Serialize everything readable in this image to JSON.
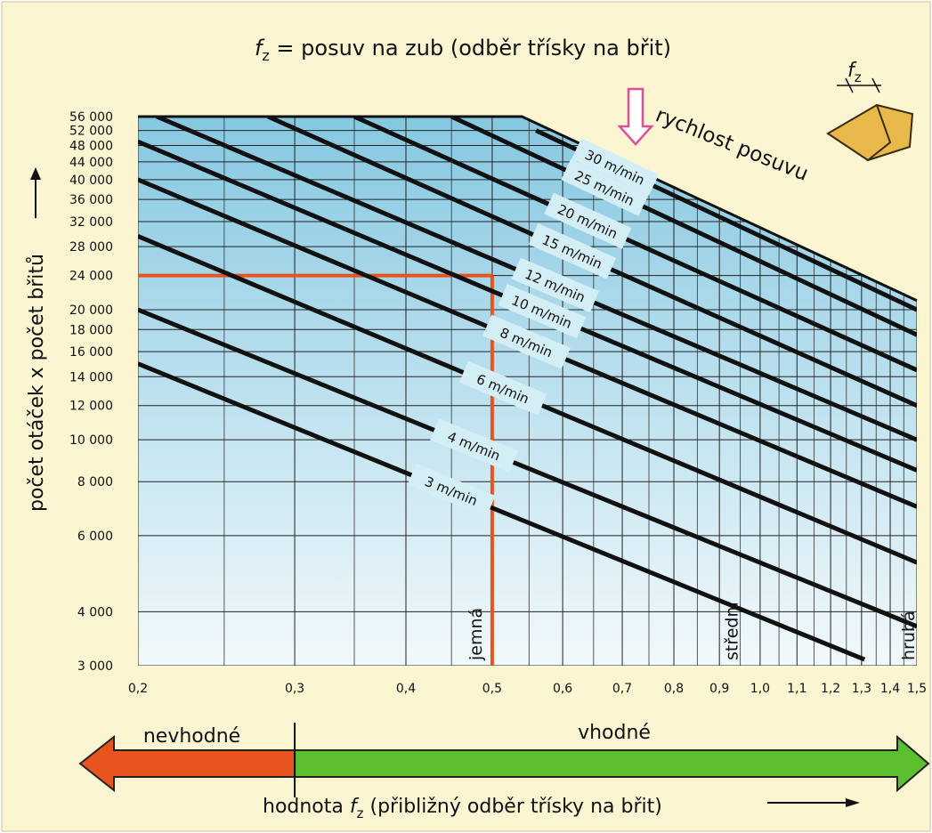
{
  "chart_data": {
    "type": "line",
    "title": {
      "symbol": "f",
      "subscript": "z",
      "text": " = posuv na zub (odběr třísky na břit)"
    },
    "y_label": "počet otáček x počet břitů",
    "x_label": {
      "text": "hodnota ",
      "symbol": "f",
      "subscript": "z",
      "rest": " (přibližný odběr třísky na břit)"
    },
    "feed_label": "rychlost posuvu",
    "icon_label": {
      "symbol": "f",
      "subscript": "z"
    },
    "xscale": "log",
    "yscale": "log",
    "grid": true,
    "xlim": [
      0.2,
      1.5
    ],
    "ylim": [
      3000,
      56000
    ],
    "xticks": [
      {
        "value": 0.2,
        "label": "0,2"
      },
      {
        "value": 0.3,
        "label": "0,3"
      },
      {
        "value": 0.4,
        "label": "0,4"
      },
      {
        "value": 0.5,
        "label": "0,5"
      },
      {
        "value": 0.6,
        "label": "0,6"
      },
      {
        "value": 0.7,
        "label": "0,7"
      },
      {
        "value": 0.8,
        "label": "0,8"
      },
      {
        "value": 0.9,
        "label": "0,9"
      },
      {
        "value": 1.0,
        "label": "1,0"
      },
      {
        "value": 1.1,
        "label": "1,1"
      },
      {
        "value": 1.2,
        "label": "1,2"
      },
      {
        "value": 1.3,
        "label": "1,3"
      },
      {
        "value": 1.4,
        "label": "1,4"
      },
      {
        "value": 1.5,
        "label": "1,5"
      }
    ],
    "xgrid_minor": [
      0.25,
      0.35,
      0.45,
      0.55,
      0.65,
      0.75,
      0.85,
      0.95,
      1.05,
      1.15,
      1.25,
      1.35,
      1.45
    ],
    "yticks": [
      {
        "value": 3000,
        "label": "3 000"
      },
      {
        "value": 4000,
        "label": "4 000"
      },
      {
        "value": 6000,
        "label": "6 000"
      },
      {
        "value": 8000,
        "label": "8 000"
      },
      {
        "value": 10000,
        "label": "10 000"
      },
      {
        "value": 12000,
        "label": "12 000"
      },
      {
        "value": 14000,
        "label": "14 000"
      },
      {
        "value": 16000,
        "label": "16 000"
      },
      {
        "value": 18000,
        "label": "18 000"
      },
      {
        "value": 20000,
        "label": "20 000"
      },
      {
        "value": 24000,
        "label": "24 000"
      },
      {
        "value": 28000,
        "label": "28 000"
      },
      {
        "value": 32000,
        "label": "32 000"
      },
      {
        "value": 36000,
        "label": "36 000"
      },
      {
        "value": 40000,
        "label": "40 000"
      },
      {
        "value": 44000,
        "label": "44 000"
      },
      {
        "value": 48000,
        "label": "48 000"
      },
      {
        "value": 52000,
        "label": "52 000"
      },
      {
        "value": 56000,
        "label": "56 000"
      }
    ],
    "top_edge": {
      "x": [
        0.2,
        0.54,
        1.5
      ],
      "values": [
        56000,
        56000,
        21000
      ]
    },
    "series": [
      {
        "name": "3 m/min",
        "color": "#111111",
        "x": [
          0.2,
          1.31
        ],
        "values": [
          15000,
          3100
        ]
      },
      {
        "name": "4 m/min",
        "color": "#111111",
        "x": [
          0.2,
          1.5
        ],
        "values": [
          20000,
          3700
        ]
      },
      {
        "name": "6 m/min",
        "color": "#111111",
        "x": [
          0.2,
          1.5
        ],
        "values": [
          29600,
          5200
        ]
      },
      {
        "name": "8 m/min",
        "color": "#111111",
        "x": [
          0.2,
          1.5
        ],
        "values": [
          40000,
          7000
        ]
      },
      {
        "name": "10 m/min",
        "color": "#111111",
        "x": [
          0.2,
          1.5
        ],
        "values": [
          49000,
          8500
        ]
      },
      {
        "name": "12 m/min",
        "color": "#111111",
        "x": [
          0.21,
          1.5
        ],
        "values": [
          56000,
          10000
        ]
      },
      {
        "name": "15 m/min",
        "color": "#111111",
        "x": [
          0.28,
          1.5
        ],
        "values": [
          56000,
          12000
        ]
      },
      {
        "name": "20 m/min",
        "color": "#111111",
        "x": [
          0.35,
          1.5
        ],
        "values": [
          56000,
          14500
        ]
      },
      {
        "name": "25 m/min",
        "color": "#111111",
        "x": [
          0.45,
          1.5
        ],
        "values": [
          56000,
          17500
        ]
      },
      {
        "name": "30 m/min",
        "color": "#111111",
        "x": [
          0.56,
          1.5
        ],
        "values": [
          52000,
          20000
        ]
      }
    ],
    "highlight": {
      "x": 0.5,
      "y": 24000,
      "color": "#e8541e"
    },
    "zones": [
      {
        "label": "jemná",
        "x": 0.48
      },
      {
        "label": "střední",
        "x": 0.93
      },
      {
        "label": "hrubá",
        "x": 1.47
      }
    ],
    "suitability": {
      "split": 0.3,
      "bad": "nevhodné",
      "good": "vhodné",
      "bad_color": "#e8541e",
      "good_color": "#5cc02e"
    }
  }
}
